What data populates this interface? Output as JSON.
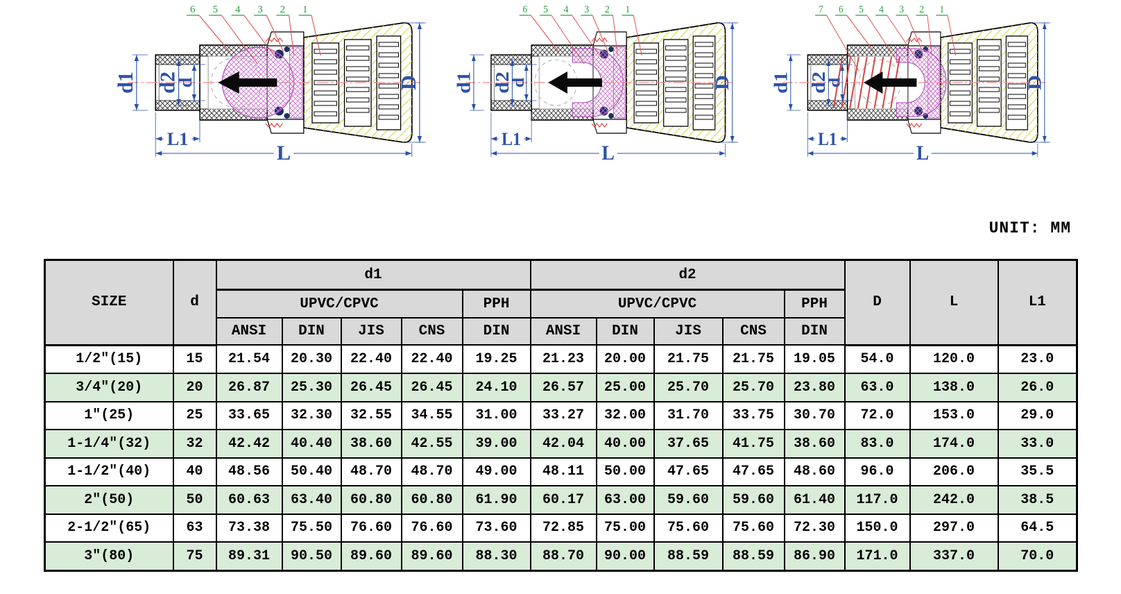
{
  "unit_label": "UNIT: MM",
  "colors": {
    "dim": "#2b52a8",
    "callout": "#2f9e44",
    "leader": "#e04646",
    "centerline": "#ef8a8a",
    "pink": "#cf6fd0",
    "pink_edge": "#b65fc0",
    "yellow": "#d8d850",
    "seal": "#1c2f63",
    "header_bg": "#d9d9d9",
    "row_green": "#d9ecd8"
  },
  "diagrams": [
    {
      "name": "foot-valve-ball-section",
      "variant": "ball",
      "callouts": [
        "6",
        "5",
        "4",
        "3",
        "2",
        "1"
      ],
      "labels": {
        "d1": "d1",
        "d2": "d2",
        "d": "d",
        "L1": "L1",
        "L": "L",
        "D": "D"
      }
    },
    {
      "name": "foot-valve-cup-section",
      "variant": "cup",
      "callouts": [
        "6",
        "5",
        "4",
        "3",
        "2",
        "1"
      ],
      "labels": {
        "d1": "d1",
        "d2": "d2",
        "d": "d",
        "L1": "L1",
        "L": "L",
        "D": "D"
      }
    },
    {
      "name": "foot-valve-spring-section",
      "variant": "spring",
      "callouts": [
        "7",
        "6",
        "5",
        "4",
        "3",
        "2",
        "1"
      ],
      "labels": {
        "d1": "d1",
        "d2": "d2",
        "d": "d",
        "L1": "L1",
        "L": "L",
        "D": "D"
      }
    }
  ],
  "table": {
    "header": {
      "size": "SIZE",
      "d": "d",
      "d1": "d1",
      "d2": "d2",
      "D": "D",
      "L": "L",
      "L1": "L1",
      "upvc1": "UPVC/CPVC",
      "pph1": "PPH",
      "upvc2": "UPVC/CPVC",
      "pph2": "PPH",
      "standards": [
        "ANSI",
        "DIN",
        "JIS",
        "CNS",
        "DIN"
      ]
    },
    "rows": [
      {
        "size": "1/2″(15)",
        "d": "15",
        "d1": [
          "21.54",
          "20.30",
          "22.40",
          "22.40",
          "19.25"
        ],
        "d2": [
          "21.23",
          "20.00",
          "21.75",
          "21.75",
          "19.05"
        ],
        "D": "54.0",
        "L": "120.0",
        "L1": "23.0"
      },
      {
        "size": "3/4″(20)",
        "d": "20",
        "d1": [
          "26.87",
          "25.30",
          "26.45",
          "26.45",
          "24.10"
        ],
        "d2": [
          "26.57",
          "25.00",
          "25.70",
          "25.70",
          "23.80"
        ],
        "D": "63.0",
        "L": "138.0",
        "L1": "26.0"
      },
      {
        "size": "1″(25)",
        "d": "25",
        "d1": [
          "33.65",
          "32.30",
          "32.55",
          "34.55",
          "31.00"
        ],
        "d2": [
          "33.27",
          "32.00",
          "31.70",
          "33.75",
          "30.70"
        ],
        "D": "72.0",
        "L": "153.0",
        "L1": "29.0"
      },
      {
        "size": "1-1/4″(32)",
        "d": "32",
        "d1": [
          "42.42",
          "40.40",
          "38.60",
          "42.55",
          "39.00"
        ],
        "d2": [
          "42.04",
          "40.00",
          "37.65",
          "41.75",
          "38.60"
        ],
        "D": "83.0",
        "L": "174.0",
        "L1": "33.0"
      },
      {
        "size": "1-1/2″(40)",
        "d": "40",
        "d1": [
          "48.56",
          "50.40",
          "48.70",
          "48.70",
          "49.00"
        ],
        "d2": [
          "48.11",
          "50.00",
          "47.65",
          "47.65",
          "48.60"
        ],
        "D": "96.0",
        "L": "206.0",
        "L1": "35.5"
      },
      {
        "size": "2″(50)",
        "d": "50",
        "d1": [
          "60.63",
          "63.40",
          "60.80",
          "60.80",
          "61.90"
        ],
        "d2": [
          "60.17",
          "63.00",
          "59.60",
          "59.60",
          "61.40"
        ],
        "D": "117.0",
        "L": "242.0",
        "L1": "38.5"
      },
      {
        "size": "2-1/2″(65)",
        "d": "63",
        "d1": [
          "73.38",
          "75.50",
          "76.60",
          "76.60",
          "73.60"
        ],
        "d2": [
          "72.85",
          "75.00",
          "75.60",
          "75.60",
          "72.30"
        ],
        "D": "150.0",
        "L": "297.0",
        "L1": "64.5"
      },
      {
        "size": "3″(80)",
        "d": "75",
        "d1": [
          "89.31",
          "90.50",
          "89.60",
          "89.60",
          "88.30"
        ],
        "d2": [
          "88.70",
          "90.00",
          "88.59",
          "88.59",
          "86.90"
        ],
        "D": "171.0",
        "L": "337.0",
        "L1": "70.0"
      }
    ]
  }
}
